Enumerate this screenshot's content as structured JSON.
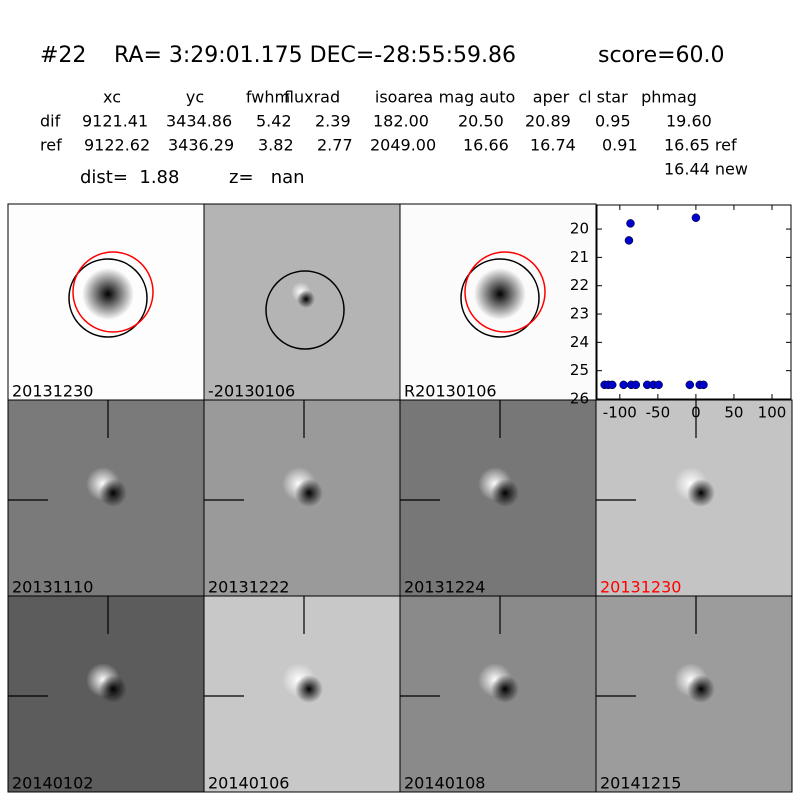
{
  "header": {
    "id": "#22",
    "coords": "RA= 3:29:01.175 DEC=-28:55:59.86",
    "score": "score=60.0"
  },
  "table": {
    "columns": [
      "xc",
      "yc",
      "fwhm",
      "fluxrad",
      "isoarea",
      "mag auto",
      "aper",
      "cl star",
      "phmag"
    ],
    "rows": [
      [
        "dif",
        "9121.41",
        "3434.86",
        "5.42",
        "2.39",
        "182.00",
        "20.50",
        "20.89",
        "0.95",
        "19.60"
      ],
      [
        "ref",
        "9122.62",
        "3436.29",
        "3.82",
        "2.77",
        "2049.00",
        "16.66",
        "16.74",
        "0.91",
        "16.65 ref"
      ]
    ],
    "extra": "16.44 new"
  },
  "dist": "dist=  1.88",
  "z": "z=   nan",
  "stamps": [
    {
      "label": "20131230"
    },
    {
      "label": "-20130106"
    },
    {
      "label": "R20130106"
    },
    {
      "label": "20131110"
    },
    {
      "label": "20131222"
    },
    {
      "label": "20131224"
    },
    {
      "label": "20131230",
      "color": "#ff0000"
    },
    {
      "label": "20140102"
    },
    {
      "label": "20140106"
    },
    {
      "label": "20140108"
    },
    {
      "label": "20141215"
    }
  ],
  "chart_data": {
    "type": "scatter",
    "color": "#0000cc",
    "x": [
      -120,
      -115,
      -110,
      -95,
      -85,
      -79,
      -64,
      -56,
      -49,
      -8,
      5,
      10,
      -88,
      -86,
      0
    ],
    "values": [
      25.5,
      25.5,
      25.5,
      25.5,
      25.5,
      25.5,
      25.5,
      25.5,
      25.5,
      25.5,
      25.5,
      25.5,
      20.4,
      19.8,
      19.6
    ],
    "xlim": [
      -130,
      125
    ],
    "ylim": [
      26,
      19.15
    ],
    "xticks": [
      -100,
      -50,
      0,
      50,
      100
    ],
    "yticks": [
      20,
      21,
      22,
      23,
      24,
      25,
      26
    ]
  }
}
